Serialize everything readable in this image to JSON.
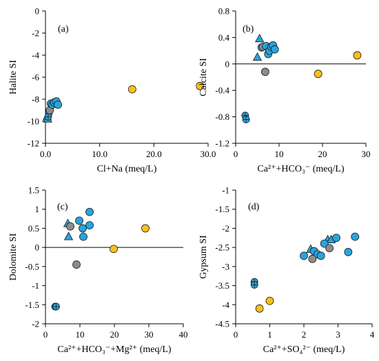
{
  "colors": {
    "blue": "#2aa3dc",
    "yellow": "#f8c01a",
    "gray": "#8c8c8c",
    "edge": "#1a1a1a"
  },
  "chart_data": [
    {
      "type": "scatter",
      "label": "(a)",
      "xlabel": "Cl+Na (meq/L)",
      "ylabel": "Halite SI",
      "xlim": [
        0,
        30
      ],
      "ylim": [
        -12,
        0
      ],
      "xticks": [
        0,
        10,
        20,
        30
      ],
      "xtick_labels": [
        "0.0",
        "10.0",
        "20.0",
        "30.0"
      ],
      "yticks": [
        0,
        -2,
        -4,
        -6,
        -8,
        -10,
        -12
      ],
      "ytick_labels": [
        "0",
        "-2",
        "-4",
        "-6",
        "-8",
        "-10",
        "-12"
      ],
      "zero_line": false,
      "points": [
        {
          "x": 0.3,
          "y": -9.6,
          "m": "triangle",
          "c": "blue"
        },
        {
          "x": 0.4,
          "y": -9.8,
          "m": "triangle",
          "c": "blue"
        },
        {
          "x": 0.6,
          "y": -9.3,
          "m": "plus",
          "c": "blue"
        },
        {
          "x": 0.5,
          "y": -9.6,
          "m": "plus",
          "c": "blue"
        },
        {
          "x": 0.8,
          "y": -9.0,
          "m": "circle",
          "c": "gray"
        },
        {
          "x": 1.0,
          "y": -8.4,
          "m": "circle",
          "c": "blue"
        },
        {
          "x": 1.3,
          "y": -8.5,
          "m": "circle",
          "c": "blue"
        },
        {
          "x": 1.6,
          "y": -8.3,
          "m": "circle",
          "c": "blue"
        },
        {
          "x": 2.0,
          "y": -8.2,
          "m": "circle",
          "c": "blue"
        },
        {
          "x": 2.3,
          "y": -8.5,
          "m": "circle",
          "c": "blue"
        },
        {
          "x": 16.0,
          "y": -7.1,
          "m": "circle",
          "c": "yellow"
        },
        {
          "x": 28.5,
          "y": -6.8,
          "m": "circle",
          "c": "yellow"
        }
      ]
    },
    {
      "type": "scatter",
      "label": "(b)",
      "xlabel": "Ca²⁺+HCO₃⁻ (meq/L)",
      "ylabel": "Calcite SI",
      "xlim": [
        0,
        30
      ],
      "ylim": [
        -1.2,
        0.8
      ],
      "xticks": [
        0,
        10,
        20,
        30
      ],
      "xtick_labels": [
        "0",
        "10",
        "20",
        "30"
      ],
      "yticks": [
        0.8,
        0.4,
        0,
        -0.4,
        -0.8,
        -1.2
      ],
      "ytick_labels": [
        "0.8",
        "0.4",
        "0",
        "-0.4",
        "-0.8",
        "-1.2"
      ],
      "zero_line": true,
      "points": [
        {
          "x": 5.0,
          "y": 0.1,
          "m": "triangle",
          "c": "blue"
        },
        {
          "x": 5.5,
          "y": 0.38,
          "m": "triangle",
          "c": "blue"
        },
        {
          "x": 6.0,
          "y": 0.25,
          "m": "circle",
          "c": "blue"
        },
        {
          "x": 6.3,
          "y": 0.26,
          "m": "circle",
          "c": "gray"
        },
        {
          "x": 7.0,
          "y": 0.27,
          "m": "circle",
          "c": "blue"
        },
        {
          "x": 7.5,
          "y": 0.15,
          "m": "circle",
          "c": "blue"
        },
        {
          "x": 7.8,
          "y": 0.2,
          "m": "circle",
          "c": "blue"
        },
        {
          "x": 8.2,
          "y": 0.26,
          "m": "circle",
          "c": "blue"
        },
        {
          "x": 8.6,
          "y": 0.28,
          "m": "circle",
          "c": "blue"
        },
        {
          "x": 9.0,
          "y": 0.22,
          "m": "circle",
          "c": "blue"
        },
        {
          "x": 6.8,
          "y": -0.12,
          "m": "circle",
          "c": "gray"
        },
        {
          "x": 19.0,
          "y": -0.15,
          "m": "circle",
          "c": "yellow"
        },
        {
          "x": 28.0,
          "y": 0.13,
          "m": "circle",
          "c": "yellow"
        },
        {
          "x": 2.2,
          "y": -0.78,
          "m": "plus",
          "c": "blue"
        },
        {
          "x": 2.4,
          "y": -0.84,
          "m": "plus",
          "c": "blue"
        }
      ]
    },
    {
      "type": "scatter",
      "label": "(c)",
      "xlabel": "Ca²⁺+HCO₃⁻+Mg²⁺ (meq/L)",
      "ylabel": "Dolomite SI",
      "xlim": [
        0,
        40
      ],
      "ylim": [
        -2,
        1.5
      ],
      "xticks": [
        0,
        10,
        20,
        30,
        40
      ],
      "xtick_labels": [
        "0",
        "10",
        "20",
        "30",
        "40"
      ],
      "yticks": [
        1.5,
        1,
        0.5,
        0,
        -0.5,
        -1,
        -1.5,
        -2
      ],
      "ytick_labels": [
        "1.5",
        "1",
        "0.5",
        "0",
        "-0.5",
        "-1",
        "-1.5",
        "-2"
      ],
      "zero_line": true,
      "points": [
        {
          "x": 6.5,
          "y": 0.62,
          "m": "triangle",
          "c": "blue"
        },
        {
          "x": 6.7,
          "y": 0.28,
          "m": "triangle",
          "c": "blue"
        },
        {
          "x": 7.2,
          "y": 0.55,
          "m": "circle",
          "c": "gray"
        },
        {
          "x": 9.8,
          "y": 0.7,
          "m": "circle",
          "c": "blue"
        },
        {
          "x": 10.8,
          "y": 0.5,
          "m": "circle",
          "c": "blue"
        },
        {
          "x": 11.0,
          "y": 0.28,
          "m": "circle",
          "c": "blue"
        },
        {
          "x": 12.8,
          "y": 0.58,
          "m": "circle",
          "c": "blue"
        },
        {
          "x": 12.8,
          "y": 0.93,
          "m": "circle",
          "c": "blue"
        },
        {
          "x": 9.0,
          "y": -0.45,
          "m": "circle",
          "c": "gray"
        },
        {
          "x": 19.8,
          "y": -0.04,
          "m": "circle",
          "c": "yellow"
        },
        {
          "x": 29.0,
          "y": 0.5,
          "m": "circle",
          "c": "yellow"
        },
        {
          "x": 2.8,
          "y": -1.55,
          "m": "plus",
          "c": "blue"
        },
        {
          "x": 3.1,
          "y": -1.55,
          "m": "plus",
          "c": "blue"
        }
      ]
    },
    {
      "type": "scatter",
      "label": "(d)",
      "xlabel": "Ca²⁺+SO₄²⁻ (meq/L)",
      "ylabel": "Gypsum SI",
      "xlim": [
        0,
        4
      ],
      "ylim": [
        -4.5,
        -1
      ],
      "xticks": [
        0,
        1,
        2,
        3,
        4
      ],
      "xtick_labels": [
        "0",
        "1",
        "2",
        "3",
        "4"
      ],
      "yticks": [
        -1,
        -1.5,
        -2,
        -2.5,
        -3,
        -3.5,
        -4,
        -4.5
      ],
      "ytick_labels": [
        "-1",
        "-1.5",
        "-2",
        "-2.5",
        "-3",
        "-3.5",
        "-4",
        "-4.5"
      ],
      "zero_line": false,
      "points": [
        {
          "x": 2.2,
          "y": -2.55,
          "m": "triangle",
          "c": "blue"
        },
        {
          "x": 2.7,
          "y": -2.3,
          "m": "triangle",
          "c": "blue"
        },
        {
          "x": 2.8,
          "y": -2.3,
          "m": "triangle",
          "c": "blue"
        },
        {
          "x": 2.0,
          "y": -2.72,
          "m": "circle",
          "c": "blue"
        },
        {
          "x": 2.3,
          "y": -2.6,
          "m": "circle",
          "c": "blue"
        },
        {
          "x": 2.4,
          "y": -2.68,
          "m": "circle",
          "c": "blue"
        },
        {
          "x": 2.5,
          "y": -2.72,
          "m": "circle",
          "c": "blue"
        },
        {
          "x": 2.6,
          "y": -2.4,
          "m": "circle",
          "c": "blue"
        },
        {
          "x": 2.95,
          "y": -2.25,
          "m": "circle",
          "c": "blue"
        },
        {
          "x": 3.3,
          "y": -2.62,
          "m": "circle",
          "c": "blue"
        },
        {
          "x": 3.5,
          "y": -2.22,
          "m": "circle",
          "c": "blue"
        },
        {
          "x": 2.25,
          "y": -2.8,
          "m": "circle",
          "c": "gray"
        },
        {
          "x": 2.75,
          "y": -2.52,
          "m": "circle",
          "c": "gray"
        },
        {
          "x": 0.55,
          "y": -3.4,
          "m": "plus",
          "c": "blue"
        },
        {
          "x": 0.55,
          "y": -3.48,
          "m": "plus",
          "c": "blue"
        },
        {
          "x": 0.7,
          "y": -4.1,
          "m": "circle",
          "c": "yellow"
        },
        {
          "x": 1.0,
          "y": -3.9,
          "m": "circle",
          "c": "yellow"
        }
      ]
    }
  ]
}
